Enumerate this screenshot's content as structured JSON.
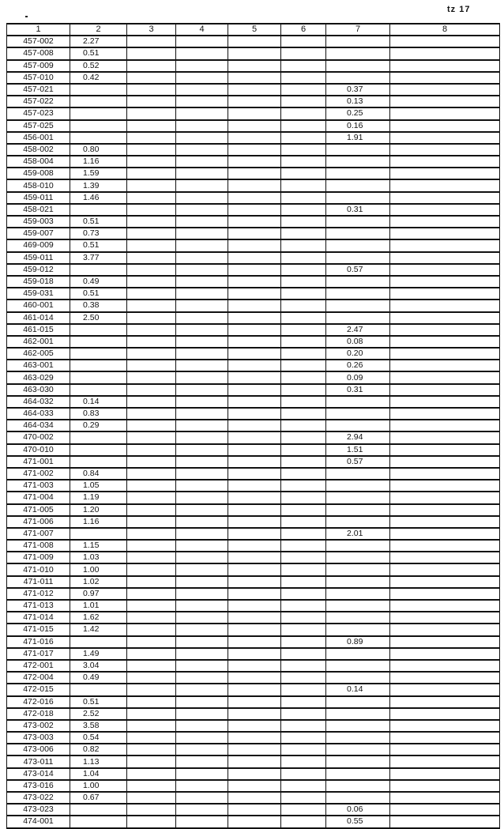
{
  "page_label": "tz 17",
  "table": {
    "headers": [
      "1",
      "2",
      "3",
      "4",
      "5",
      "6",
      "7",
      "8"
    ],
    "rows": [
      [
        "457-002",
        "2.27",
        ""
      ],
      [
        "457-008",
        "0.51",
        ""
      ],
      [
        "457-009",
        "0.52",
        ""
      ],
      [
        "457-010",
        "0.42",
        ""
      ],
      [
        "457-021",
        "",
        "0.37"
      ],
      [
        "457-022",
        "",
        "0.13"
      ],
      [
        "457-023",
        "",
        "0.25"
      ],
      [
        "457-025",
        "",
        "0.16"
      ],
      [
        "456-001",
        "",
        "1.91"
      ],
      [
        "458-002",
        "0.80",
        ""
      ],
      [
        "458-004",
        "1.16",
        ""
      ],
      [
        "459-008",
        "1.59",
        ""
      ],
      [
        "458-010",
        "1.39",
        ""
      ],
      [
        "459-011",
        "1.46",
        ""
      ],
      [
        "458-021",
        "",
        "0.31"
      ],
      [
        "459-003",
        "0.51",
        ""
      ],
      [
        "459-007",
        "0.73",
        ""
      ],
      [
        "469-009",
        "0.51",
        ""
      ],
      [
        "459-011",
        "3.77",
        ""
      ],
      [
        "459-012",
        "",
        "0.57"
      ],
      [
        "459-018",
        "0.49",
        ""
      ],
      [
        "459-031",
        "0.51",
        ""
      ],
      [
        "460-001",
        "0.38",
        ""
      ],
      [
        "461-014",
        "2.50",
        ""
      ],
      [
        "461-015",
        "",
        "2.47"
      ],
      [
        "462-001",
        "",
        "0.08"
      ],
      [
        "462-005",
        "",
        "0.20"
      ],
      [
        "463-001",
        "",
        "0.26"
      ],
      [
        "463-029",
        "",
        "0.09"
      ],
      [
        "463-030",
        "",
        "0.31"
      ],
      [
        "464-032",
        "0.14",
        ""
      ],
      [
        "464-033",
        "0.83",
        ""
      ],
      [
        "464-034",
        "0.29",
        ""
      ],
      [
        "470-002",
        "",
        "2.94"
      ],
      [
        "470-010",
        "",
        "1.51"
      ],
      [
        "471-001",
        "",
        "0.57"
      ],
      [
        "471-002",
        "0.84",
        ""
      ],
      [
        "471-003",
        "1.05",
        ""
      ],
      [
        "471-004",
        "1.19",
        ""
      ],
      [
        "471-005",
        "1.20",
        ""
      ],
      [
        "471-006",
        "1.16",
        ""
      ],
      [
        "471-007",
        "",
        "2.01"
      ],
      [
        "471-008",
        "1.15",
        ""
      ],
      [
        "471-009",
        "1.03",
        ""
      ],
      [
        "471-010",
        "1.00",
        ""
      ],
      [
        "471-011",
        "1.02",
        ""
      ],
      [
        "471-012",
        "0.97",
        ""
      ],
      [
        "471-013",
        "1.01",
        ""
      ],
      [
        "471-014",
        "1.62",
        ""
      ],
      [
        "471-015",
        "1.42",
        ""
      ],
      [
        "471-016",
        "",
        "0.89"
      ],
      [
        "471-017",
        "1.49",
        ""
      ],
      [
        "472-001",
        "3.04",
        ""
      ],
      [
        "472-004",
        "0.49",
        ""
      ],
      [
        "472-015",
        "",
        "0.14"
      ],
      [
        "472-016",
        "0.51",
        ""
      ],
      [
        "472-018",
        "2.52",
        ""
      ],
      [
        "473-002",
        "3.58",
        ""
      ],
      [
        "473-003",
        "0.54",
        ""
      ],
      [
        "473-006",
        "0.82",
        ""
      ],
      [
        "473-011",
        "1.13",
        ""
      ],
      [
        "473-014",
        "1.04",
        ""
      ],
      [
        "473-016",
        "1.00",
        ""
      ],
      [
        "473-022",
        "0.67",
        ""
      ],
      [
        "473-023",
        "",
        "0.06"
      ],
      [
        "474-001",
        "",
        "0.55"
      ]
    ]
  }
}
